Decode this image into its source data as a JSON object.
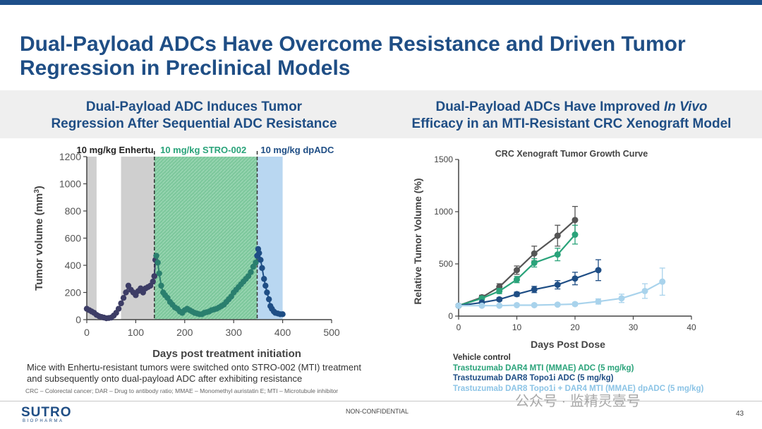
{
  "slide": {
    "title": "Dual-Payload ADCs Have Overcome Resistance and Driven Tumor Regression in Preclinical Models",
    "left_subtitle_line1": "Dual-Payload ADC Induces Tumor",
    "left_subtitle_line2": "Regression After Sequential ADC Resistance",
    "right_subtitle_line1_pre": "Dual-Payload ADCs Have Improved ",
    "right_subtitle_line1_em": "In Vivo",
    "right_subtitle_line2": "Efficacy in an MTI-Resistant CRC Xenograft Model",
    "caption": "Mice with Enhertu-resistant tumors were switched onto STRO-002 (MTI) treatment and subsequently onto dual-payload ADC after exhibiting resistance",
    "footnote": "CRC – Colorectal cancer; DAR – Drug to antibody ratio; MMAE – Monomethyl auristatin E; MTI – Microtubule inhibitor",
    "logo": "SUTRO",
    "logo_sub": "BIOPHARMA",
    "confidential": "NON-CONFIDENTIAL",
    "page_number": "43",
    "watermark": "公众号 · 监精灵壹号"
  },
  "colors": {
    "brand": "#1f4e85",
    "enhertu_band": "#cfcfcf",
    "stro002_band": "#7ec89d",
    "dpadc_band": "#b9d7f1",
    "vehicle": "#555555",
    "mti": "#2aa37a",
    "topo1": "#1f4e85",
    "dual": "#a9d3ec"
  },
  "chart_data": [
    {
      "type": "line",
      "title": "",
      "xlabel": "Days post treatment initiation",
      "ylabel": "Tumor volume (mm",
      "ylabel_sup": "3",
      "ylabel_end": ")",
      "xlim": [
        0,
        500
      ],
      "ylim": [
        0,
        1200
      ],
      "xticks": [
        "0",
        "100",
        "200",
        "300",
        "400",
        "500"
      ],
      "yticks": [
        "0",
        "200",
        "400",
        "600",
        "800",
        "1000",
        "1200"
      ],
      "phases": [
        {
          "label": "10 mg/kg Enhertu",
          "color": "#222222",
          "labelx": 8
        },
        {
          "label": "10 mg/kg STRO-002",
          "color": "#2aa37a",
          "labelx": 150
        },
        {
          "label": "10 mg/kg dpADC",
          "color": "#1f4e85",
          "labelx": 355
        }
      ],
      "bands": [
        {
          "x0": 0,
          "x1": 20,
          "color": "#cfcfcf",
          "opacity": 1
        },
        {
          "x0": 70,
          "x1": 138,
          "color": "#cfcfcf",
          "opacity": 1
        },
        {
          "x0": 138,
          "x1": 348,
          "color": "#7ec89d",
          "opacity": 1,
          "hatched": true
        },
        {
          "x0": 348,
          "x1": 400,
          "color": "#b9d7f1",
          "opacity": 1
        }
      ],
      "vlines": [
        138,
        348
      ],
      "series": [
        {
          "segment": "enhertu",
          "color": "#3d3d66",
          "x": [
            0,
            5,
            10,
            15,
            20,
            25,
            30,
            35,
            40,
            45,
            50,
            55,
            60,
            65,
            70,
            75,
            80,
            85,
            90,
            95,
            100,
            105,
            110,
            115,
            120,
            125,
            130,
            135,
            138
          ],
          "y": [
            80,
            70,
            60,
            50,
            35,
            25,
            20,
            15,
            10,
            12,
            15,
            30,
            50,
            80,
            120,
            160,
            200,
            250,
            220,
            200,
            180,
            210,
            230,
            200,
            230,
            240,
            250,
            280,
            320
          ]
        },
        {
          "segment": "enhertu-peak",
          "color": "#3d3d66",
          "x": [
            138,
            140,
            142
          ],
          "y": [
            320,
            440,
            470
          ]
        },
        {
          "segment": "stro002",
          "color": "#2a7f6e",
          "x": [
            142,
            145,
            148,
            152,
            156,
            160,
            165,
            170,
            175,
            180,
            185,
            190,
            195,
            200,
            205,
            210,
            215,
            220,
            225,
            230,
            235,
            240,
            245,
            250,
            255,
            260,
            265,
            270,
            275,
            280,
            285,
            290,
            295,
            300,
            305,
            310,
            315,
            320,
            325,
            330,
            335,
            340,
            345,
            348
          ],
          "y": [
            470,
            420,
            340,
            250,
            200,
            180,
            160,
            130,
            110,
            90,
            80,
            60,
            50,
            70,
            80,
            70,
            60,
            50,
            45,
            40,
            40,
            50,
            55,
            60,
            70,
            75,
            80,
            90,
            100,
            110,
            130,
            150,
            170,
            200,
            220,
            240,
            260,
            280,
            300,
            320,
            350,
            390,
            420,
            470
          ]
        },
        {
          "segment": "dpadc",
          "color": "#1f4e85",
          "x": [
            348,
            350,
            352,
            355,
            358,
            362,
            365,
            368,
            372,
            375,
            378,
            382,
            385,
            390,
            395,
            400
          ],
          "y": [
            470,
            520,
            490,
            440,
            380,
            300,
            250,
            200,
            150,
            100,
            80,
            60,
            50,
            45,
            40,
            40
          ]
        }
      ]
    },
    {
      "type": "line",
      "title": "CRC Xenograft Tumor Growth Curve",
      "xlabel": "Days Post Dose",
      "ylabel": "Relative Tumor  Volume (%)",
      "xlim": [
        0,
        40
      ],
      "ylim": [
        0,
        1500
      ],
      "xticks": [
        "0",
        "10",
        "20",
        "30",
        "40"
      ],
      "yticks": [
        "0",
        "500",
        "1000",
        "1500"
      ],
      "series": [
        {
          "name": "Vehicle control",
          "color": "#555555",
          "x": [
            0,
            4,
            7,
            10,
            13,
            17,
            20
          ],
          "y": [
            100,
            180,
            280,
            440,
            600,
            770,
            920
          ],
          "err": [
            10,
            20,
            30,
            40,
            70,
            100,
            130
          ]
        },
        {
          "name": "Trastuzumab DAR4 MTI (MMAE) ADC (5 mg/kg)",
          "color": "#2aa37a",
          "x": [
            0,
            4,
            7,
            10,
            13,
            17,
            20
          ],
          "y": [
            100,
            170,
            240,
            350,
            510,
            590,
            780
          ],
          "err": [
            10,
            15,
            25,
            30,
            40,
            60,
            90
          ]
        },
        {
          "name": "Trastuzumab DAR8 Topo1i ADC (5 mg/kg)",
          "color": "#1f4e85",
          "x": [
            0,
            4,
            7,
            10,
            13,
            17,
            20,
            24
          ],
          "y": [
            100,
            130,
            160,
            210,
            255,
            300,
            360,
            440
          ],
          "err": [
            10,
            10,
            15,
            20,
            30,
            40,
            60,
            100
          ]
        },
        {
          "name": "Trastuzumab DAR8 Topo1i + DAR4 MTI (MMAE) dpADC (5 mg/kg)",
          "color": "#a9d3ec",
          "x": [
            0,
            4,
            7,
            10,
            13,
            17,
            20,
            24,
            28,
            32,
            35
          ],
          "y": [
            100,
            100,
            100,
            105,
            105,
            110,
            115,
            140,
            170,
            240,
            330
          ],
          "err": [
            8,
            8,
            8,
            10,
            10,
            10,
            15,
            25,
            40,
            70,
            130
          ]
        }
      ]
    }
  ]
}
